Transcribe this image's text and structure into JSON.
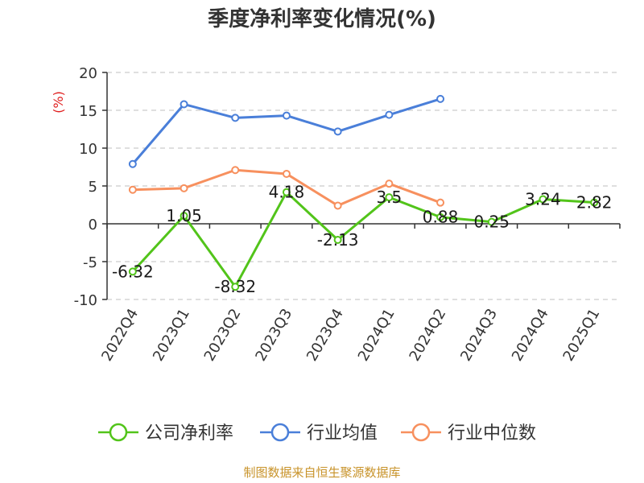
{
  "chart_data": {
    "type": "line",
    "title": "季度净利率变化情况(%)",
    "ylabel": "(%)",
    "ylim": [
      -10,
      20
    ],
    "yticks": [
      -10,
      -5,
      0,
      5,
      10,
      15,
      20
    ],
    "grid": true,
    "legend_position": "bottom",
    "categories": [
      "2022Q4",
      "2023Q1",
      "2023Q2",
      "2023Q3",
      "2023Q4",
      "2024Q1",
      "2024Q2",
      "2024Q3",
      "2024Q4",
      "2025Q1"
    ],
    "series": [
      {
        "name": "公司净利率",
        "color": "#52c41a",
        "values": [
          -6.32,
          1.05,
          -8.32,
          4.18,
          -2.13,
          3.5,
          0.88,
          0.25,
          3.24,
          2.82
        ],
        "labels": [
          "-6.32",
          "1.05",
          "-8.32",
          "4.18",
          "-2.13",
          "3.5",
          "0.88",
          "0.25",
          "3.24",
          "2.82"
        ]
      },
      {
        "name": "行业均值",
        "color": "#4a7fd9",
        "values": [
          7.9,
          15.8,
          14.0,
          14.3,
          12.2,
          14.4,
          16.5,
          null,
          null,
          null
        ]
      },
      {
        "name": "行业中位数",
        "color": "#f7905e",
        "values": [
          4.5,
          4.7,
          7.1,
          6.6,
          2.4,
          5.3,
          2.8,
          null,
          null,
          null
        ]
      }
    ]
  },
  "source": "制图数据来自恒生聚源数据库",
  "colors": {
    "title": "#333333",
    "ylabel": "#e02020",
    "grid": "#cccccc",
    "axis": "#333333",
    "source": "#c8932a"
  }
}
